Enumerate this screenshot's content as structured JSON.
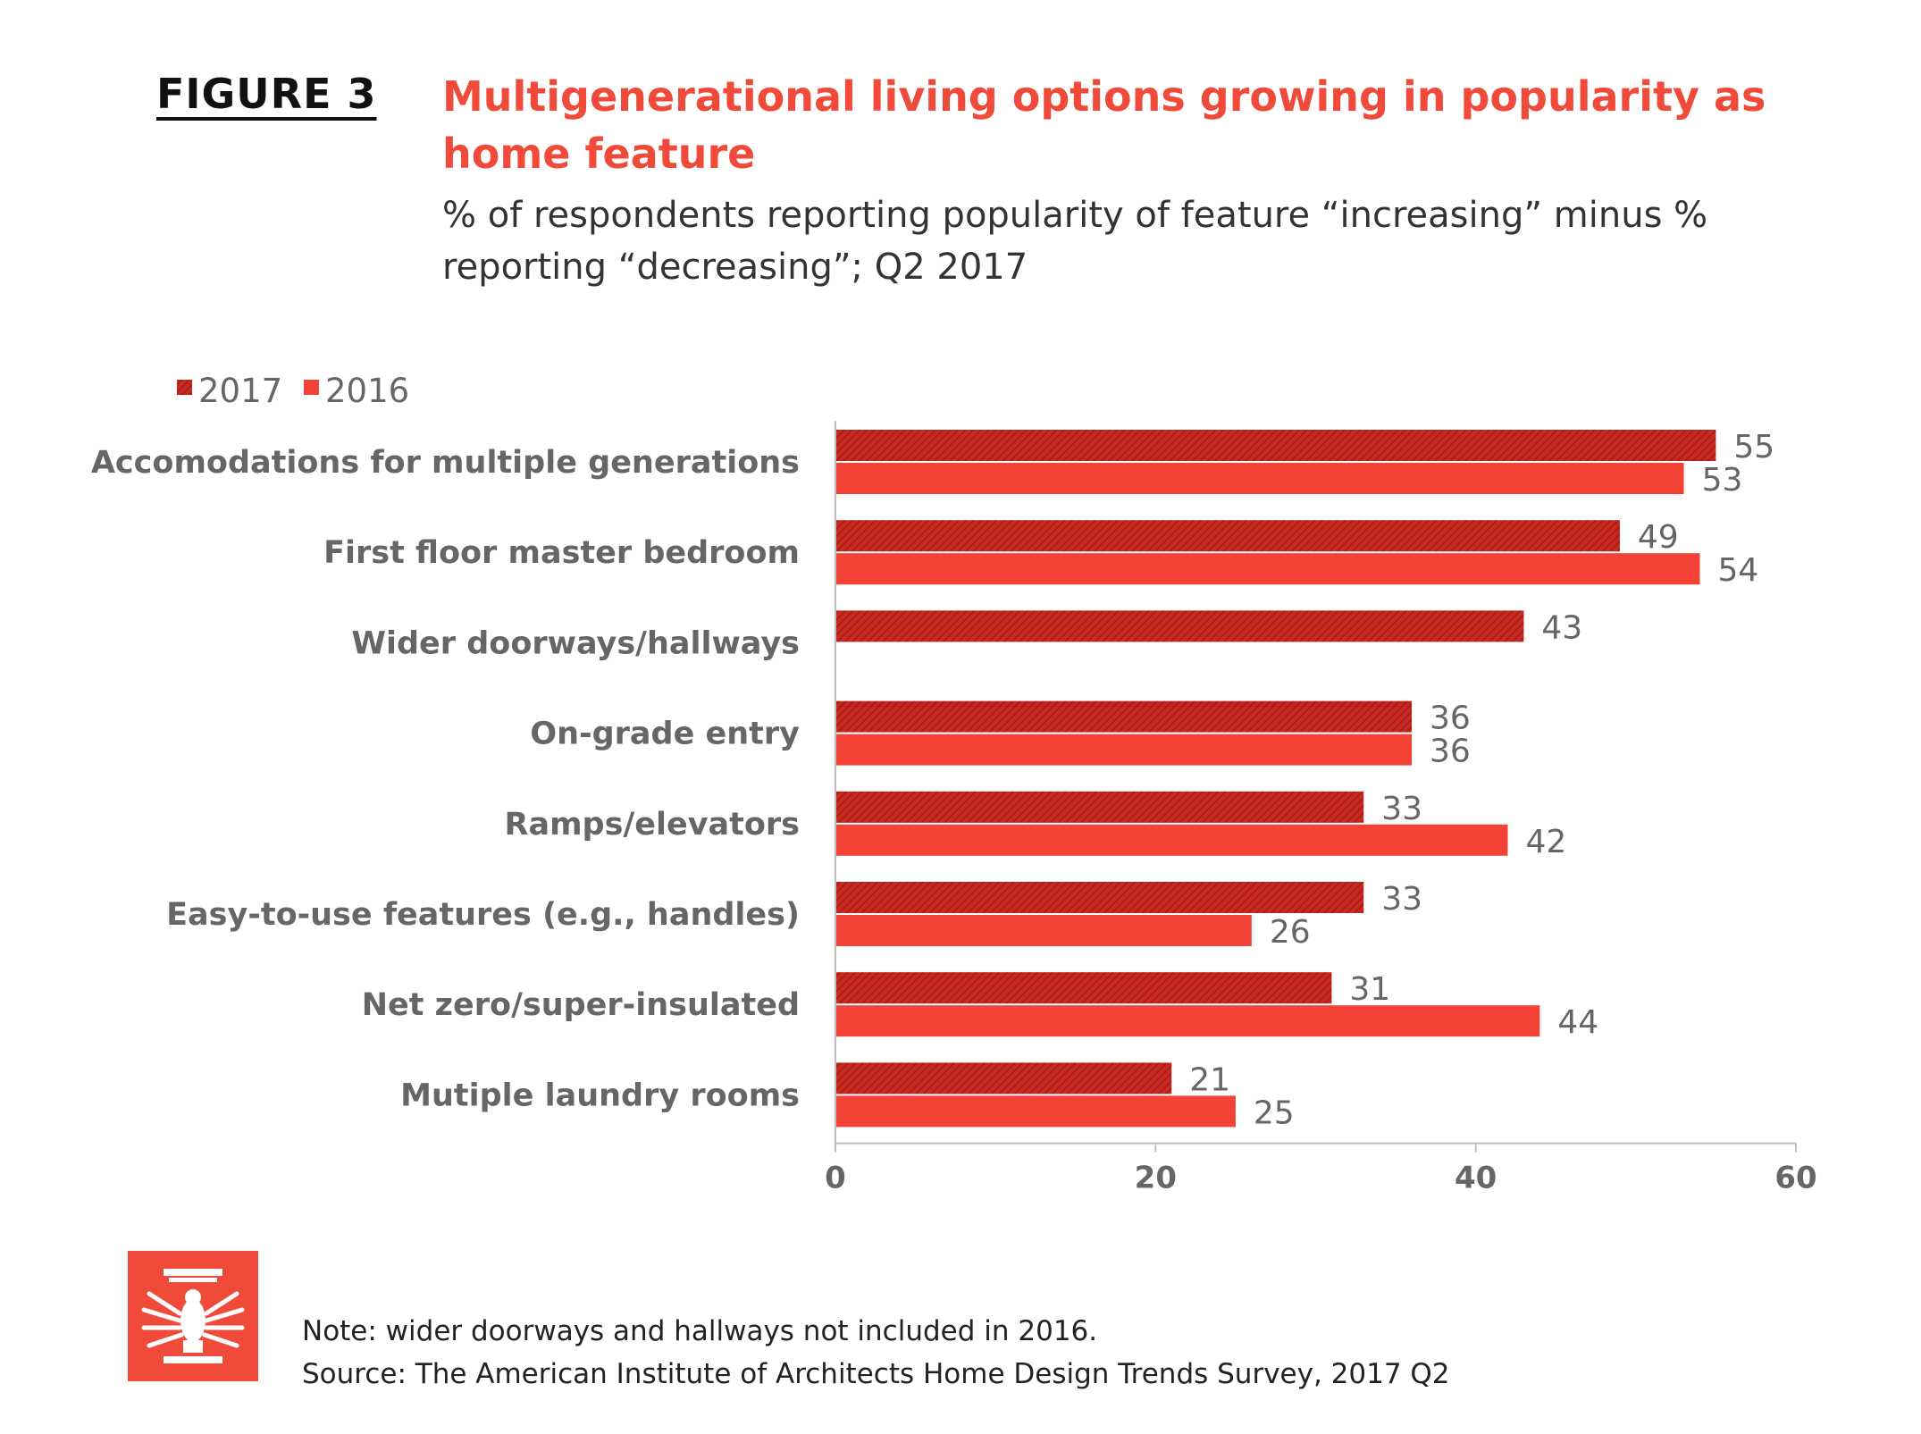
{
  "figure_label": "FIGURE 3",
  "title": "Multigenerational living options growing in popularity as home feature",
  "subtitle": "% of respondents reporting popularity of feature “increasing” minus % reporting “decreasing”; Q2 2017",
  "note": "Note: wider doorways and hallways not included in 2016.",
  "source": "Source: The American Institute of Architects Home Design Trends Survey, 2017 Q2",
  "colors": {
    "series_2017": "#c8271f",
    "series_2016": "#f44336",
    "title": "#f04a3a",
    "axis_text": "#666666"
  },
  "chart_data": {
    "type": "bar",
    "orientation": "horizontal",
    "categories": [
      "Accomodations for multiple generations",
      "First floor master bedroom",
      "Wider doorways/hallways",
      "On-grade entry",
      "Ramps/elevators",
      "Easy-to-use features (e.g., handles)",
      "Net zero/super-insulated",
      "Mutiple laundry rooms"
    ],
    "series": [
      {
        "name": "2017",
        "values": [
          55,
          49,
          43,
          36,
          33,
          33,
          31,
          21
        ],
        "labels": [
          "55",
          "49",
          "43",
          "36",
          "33",
          "33",
          "31",
          "21"
        ],
        "pattern": "hatched"
      },
      {
        "name": "2016",
        "values": [
          53,
          54,
          null,
          36,
          42,
          26,
          44,
          25
        ],
        "labels": [
          "53",
          "54",
          "",
          "36",
          "42",
          "26",
          "44",
          "25"
        ],
        "pattern": "solid"
      }
    ],
    "xlim": [
      0,
      60
    ],
    "xticks": [
      0,
      20,
      40,
      60
    ],
    "xtick_labels": [
      "0",
      "20",
      "40",
      "60"
    ],
    "legend": "top-left",
    "grid": false
  }
}
